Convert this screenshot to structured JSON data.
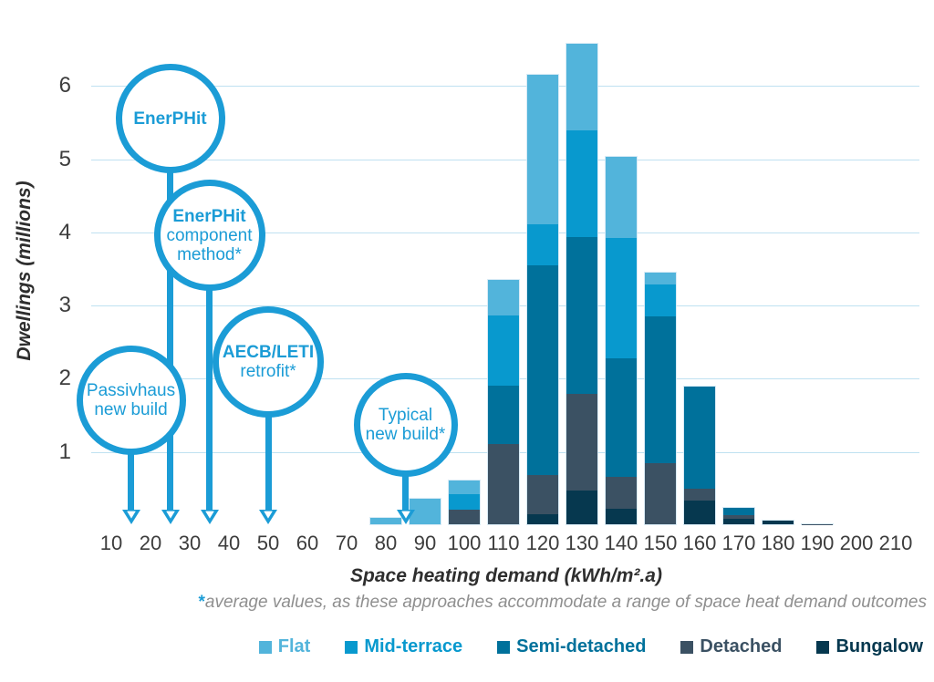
{
  "chart_data": {
    "type": "bar",
    "stacked": true,
    "title": "",
    "xlabel": "Space heating demand (kWh/m².a)",
    "ylabel": "Dwellings (millions)",
    "footnote_star": "*",
    "footnote_text": "average values, as these approaches accommodate a range of space heat demand outcomes",
    "accent_color": "#1b9cd6",
    "gridline_color": "#bfe1f1",
    "grid": true,
    "legend_position": "bottom-right",
    "x_ticks": [
      10,
      20,
      30,
      40,
      50,
      60,
      70,
      80,
      90,
      100,
      110,
      120,
      130,
      140,
      150,
      160,
      170,
      180,
      190,
      200,
      210
    ],
    "y_ticks": [
      1,
      2,
      3,
      4,
      5,
      6
    ],
    "ylim": [
      0,
      6.7
    ],
    "categories": [
      80,
      90,
      100,
      110,
      120,
      130,
      140,
      150,
      160,
      170,
      180,
      190
    ],
    "series": [
      {
        "name": "Flat",
        "color": "#52b4db",
        "values": [
          0.11,
          0.38,
          0.19,
          0.49,
          2.04,
          1.19,
          1.11,
          0.16,
          0,
          0,
          0,
          0
        ]
      },
      {
        "name": "Mid-terrace",
        "color": "#0899ce",
        "values": [
          0,
          0,
          0.22,
          0.96,
          0.57,
          1.46,
          1.65,
          0.44,
          0,
          0,
          0,
          0
        ]
      },
      {
        "name": "Semi-detached",
        "color": "#00719b",
        "values": [
          0,
          0,
          0,
          0.81,
          2.87,
          2.15,
          1.63,
          2.02,
          1.41,
          0.11,
          0,
          0
        ]
      },
      {
        "name": "Detached",
        "color": "#3b5163",
        "values": [
          0,
          0,
          0.21,
          1.1,
          0.54,
          1.33,
          0.44,
          0.84,
          0.16,
          0.06,
          0,
          0.03
        ]
      },
      {
        "name": "Bungalow",
        "color": "#06384f",
        "values": [
          0,
          0,
          0,
          0,
          0.14,
          0.46,
          0.21,
          0,
          0.33,
          0.08,
          0.07,
          0
        ]
      }
    ],
    "annotations": [
      {
        "label_lines": [
          "EnerPHit"
        ],
        "bold_line_count": 1,
        "points_to_x": 25,
        "circle_cy": 130,
        "circle_r": 60
      },
      {
        "label_lines": [
          "EnerPHit",
          "component",
          "method*"
        ],
        "bold_line_count": 1,
        "points_to_x": 35,
        "circle_cy": 258,
        "circle_r": 61
      },
      {
        "label_lines": [
          "AECB/LETI",
          "retrofit*"
        ],
        "bold_line_count": 1,
        "points_to_x": 50,
        "circle_cy": 397,
        "circle_r": 61
      },
      {
        "label_lines": [
          "Passivhaus",
          "new build"
        ],
        "bold_line_count": 0,
        "points_to_x": 15,
        "circle_cy": 439,
        "circle_r": 60
      },
      {
        "label_lines": [
          "Typical",
          "new build*"
        ],
        "bold_line_count": 0,
        "points_to_x": 85,
        "circle_cy": 466,
        "circle_r": 57
      }
    ]
  }
}
